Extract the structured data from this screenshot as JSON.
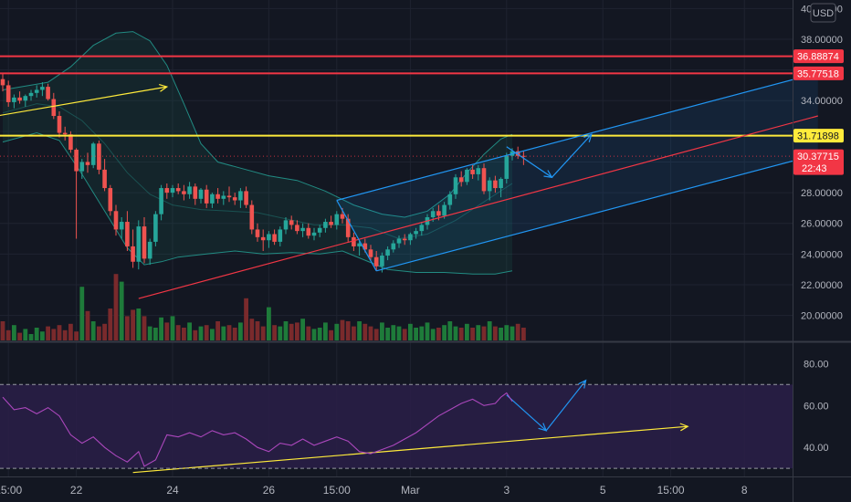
{
  "chart_data": {
    "type": "candlestick",
    "currency": "USD",
    "price_axis": {
      "ylim": [
        19.5,
        40.2
      ],
      "ticks": [
        20,
        22,
        24,
        26,
        28,
        34,
        38,
        40
      ],
      "tick_labels": [
        "20.00000",
        "22.00000",
        "24.00000",
        "26.00000",
        "28.00000",
        "34.00000",
        "38.00000",
        "40.00000"
      ]
    },
    "rsi_axis": {
      "ylim": [
        27,
        88
      ],
      "ticks": [
        40,
        60,
        80
      ],
      "tick_labels": [
        "40.00",
        "60.00",
        "80.00"
      ],
      "upper_band": 70,
      "lower_band": 30
    },
    "x_axis": {
      "labels": [
        {
          "text": "15:00",
          "i": 1
        },
        {
          "text": "22",
          "i": 13
        },
        {
          "text": "24",
          "i": 30
        },
        {
          "text": "26",
          "i": 47
        },
        {
          "text": "15:00",
          "i": 59
        },
        {
          "text": "Mar",
          "i": 72
        },
        {
          "text": "3",
          "i": 89
        },
        {
          "text": "5",
          "i": 106
        },
        {
          "text": "15:00",
          "i": 118
        },
        {
          "text": "8",
          "i": 131
        }
      ]
    },
    "price_tags": [
      {
        "label": "36.88874",
        "value": 36.88874,
        "color": "#f23645"
      },
      {
        "label": "35.77518",
        "value": 35.77518,
        "color": "#f23645"
      },
      {
        "label": "31.71898",
        "value": 31.71898,
        "color": "#ffeb3b"
      },
      {
        "label": "30.37715",
        "value": 30.37715,
        "color": "#f23645",
        "countdown": "22:43"
      }
    ],
    "horizontal_levels": [
      {
        "value": 36.88874,
        "color": "#f23645"
      },
      {
        "value": 35.77518,
        "color": "#f23645"
      },
      {
        "value": 31.71898,
        "color": "#ffeb3b"
      }
    ],
    "candles": [
      [
        35.4,
        35.8,
        34.6,
        35.0
      ],
      [
        35.0,
        35.3,
        33.6,
        33.9
      ],
      [
        33.9,
        34.4,
        33.5,
        34.2
      ],
      [
        34.2,
        34.6,
        33.8,
        34.0
      ],
      [
        34.0,
        34.4,
        33.6,
        34.3
      ],
      [
        34.3,
        34.7,
        34.0,
        34.5
      ],
      [
        34.5,
        35.0,
        34.2,
        34.7
      ],
      [
        34.7,
        35.2,
        34.3,
        34.9
      ],
      [
        34.9,
        35.1,
        34.0,
        34.1
      ],
      [
        34.1,
        34.5,
        32.8,
        33.0
      ],
      [
        33.0,
        33.3,
        31.6,
        31.9
      ],
      [
        31.9,
        32.3,
        31.4,
        31.8
      ],
      [
        31.8,
        32.0,
        30.6,
        30.8
      ],
      [
        30.8,
        30.9,
        25.0,
        29.4
      ],
      [
        29.4,
        30.2,
        28.9,
        30.0
      ],
      [
        30.0,
        30.6,
        29.3,
        29.8
      ],
      [
        29.8,
        31.3,
        29.6,
        31.2
      ],
      [
        31.2,
        31.4,
        29.2,
        29.5
      ],
      [
        29.5,
        30.2,
        28.1,
        28.3
      ],
      [
        28.3,
        28.5,
        26.5,
        26.8
      ],
      [
        26.8,
        27.2,
        25.2,
        25.6
      ],
      [
        25.6,
        26.4,
        25.0,
        26.1
      ],
      [
        26.1,
        26.8,
        24.2,
        24.5
      ],
      [
        24.5,
        25.6,
        23.1,
        23.5
      ],
      [
        23.5,
        26.2,
        23.0,
        25.8
      ],
      [
        25.8,
        26.4,
        23.4,
        23.7
      ],
      [
        23.7,
        25.0,
        23.3,
        24.8
      ],
      [
        24.8,
        26.8,
        24.5,
        26.6
      ],
      [
        26.6,
        28.5,
        26.2,
        28.3
      ],
      [
        28.3,
        28.6,
        27.6,
        28.0
      ],
      [
        28.0,
        28.5,
        27.7,
        28.3
      ],
      [
        28.3,
        28.6,
        27.9,
        28.1
      ],
      [
        28.1,
        28.5,
        27.5,
        27.9
      ],
      [
        27.9,
        28.7,
        27.6,
        28.4
      ],
      [
        28.4,
        28.6,
        27.2,
        27.6
      ],
      [
        27.6,
        28.3,
        27.3,
        28.2
      ],
      [
        28.2,
        28.5,
        27.0,
        27.3
      ],
      [
        27.3,
        28.0,
        27.0,
        27.9
      ],
      [
        27.9,
        28.3,
        27.3,
        27.6
      ],
      [
        27.6,
        28.1,
        27.2,
        27.8
      ],
      [
        27.8,
        28.4,
        27.4,
        27.7
      ],
      [
        27.7,
        28.0,
        27.2,
        27.5
      ],
      [
        27.5,
        28.3,
        27.0,
        28.1
      ],
      [
        28.1,
        28.4,
        27.0,
        27.2
      ],
      [
        27.2,
        27.5,
        25.3,
        25.6
      ],
      [
        25.6,
        26.0,
        24.8,
        25.1
      ],
      [
        25.1,
        25.6,
        24.2,
        24.9
      ],
      [
        24.9,
        25.5,
        24.4,
        25.3
      ],
      [
        25.3,
        25.6,
        24.6,
        24.8
      ],
      [
        24.8,
        25.8,
        24.5,
        25.6
      ],
      [
        25.6,
        26.4,
        25.3,
        26.2
      ],
      [
        26.2,
        26.5,
        25.6,
        25.9
      ],
      [
        25.9,
        26.2,
        25.3,
        25.5
      ],
      [
        25.5,
        26.0,
        25.1,
        25.7
      ],
      [
        25.7,
        26.0,
        25.0,
        25.2
      ],
      [
        25.2,
        25.7,
        24.9,
        25.4
      ],
      [
        25.4,
        25.9,
        25.1,
        25.7
      ],
      [
        25.7,
        26.3,
        25.4,
        26.1
      ],
      [
        26.1,
        26.5,
        25.7,
        25.9
      ],
      [
        25.9,
        26.8,
        25.6,
        26.6
      ],
      [
        26.6,
        27.0,
        26.0,
        26.3
      ],
      [
        26.3,
        26.6,
        24.8,
        25.1
      ],
      [
        25.1,
        25.4,
        24.2,
        24.5
      ],
      [
        24.5,
        24.9,
        23.9,
        24.7
      ],
      [
        24.7,
        25.0,
        24.1,
        24.3
      ],
      [
        24.3,
        24.6,
        23.6,
        23.8
      ],
      [
        23.8,
        24.2,
        22.9,
        23.2
      ],
      [
        23.2,
        24.1,
        22.8,
        23.9
      ],
      [
        23.9,
        24.5,
        23.6,
        24.3
      ],
      [
        24.3,
        24.9,
        24.1,
        24.7
      ],
      [
        24.7,
        25.2,
        24.4,
        25.0
      ],
      [
        25.0,
        25.3,
        24.6,
        24.9
      ],
      [
        24.9,
        25.4,
        24.6,
        25.3
      ],
      [
        25.3,
        25.7,
        25.0,
        25.5
      ],
      [
        25.5,
        26.1,
        25.2,
        25.9
      ],
      [
        25.9,
        26.6,
        25.6,
        26.4
      ],
      [
        26.4,
        27.0,
        26.1,
        26.8
      ],
      [
        26.8,
        27.2,
        26.2,
        26.5
      ],
      [
        26.5,
        27.4,
        26.3,
        27.2
      ],
      [
        27.2,
        28.1,
        26.9,
        27.9
      ],
      [
        27.9,
        29.2,
        27.6,
        29.0
      ],
      [
        29.0,
        29.4,
        28.4,
        28.7
      ],
      [
        28.7,
        29.6,
        28.5,
        29.5
      ],
      [
        29.5,
        29.8,
        28.9,
        29.2
      ],
      [
        29.2,
        29.8,
        28.8,
        29.6
      ],
      [
        29.6,
        29.9,
        27.9,
        28.1
      ],
      [
        28.1,
        29.0,
        27.5,
        28.8
      ],
      [
        28.8,
        29.1,
        28.0,
        28.3
      ],
      [
        28.3,
        29.0,
        27.7,
        28.9
      ],
      [
        28.9,
        30.6,
        28.6,
        30.4
      ],
      [
        30.4,
        30.9,
        30.1,
        30.7
      ],
      [
        30.7,
        31.0,
        30.2,
        30.4
      ],
      [
        30.4,
        30.7,
        29.8,
        30.37715
      ]
    ],
    "bollinger": {
      "upper": [
        [
          0,
          34.7
        ],
        [
          8,
          35.2
        ],
        [
          12,
          36.2
        ],
        [
          16,
          37.6
        ],
        [
          20,
          38.4
        ],
        [
          23,
          38.5
        ],
        [
          26,
          37.9
        ],
        [
          29,
          36.3
        ],
        [
          32,
          33.8
        ],
        [
          35,
          31.2
        ],
        [
          38,
          30.0
        ],
        [
          42,
          29.6
        ],
        [
          47,
          29.1
        ],
        [
          52,
          28.8
        ],
        [
          57,
          28.1
        ],
        [
          62,
          27.2
        ],
        [
          67,
          26.6
        ],
        [
          71,
          26.4
        ],
        [
          75,
          26.8
        ],
        [
          79,
          27.9
        ],
        [
          82,
          29.3
        ],
        [
          85,
          30.5
        ],
        [
          88,
          31.5
        ],
        [
          90,
          31.8
        ]
      ],
      "middle": [
        [
          0,
          33.2
        ],
        [
          6,
          33.8
        ],
        [
          10,
          33.6
        ],
        [
          14,
          32.7
        ],
        [
          18,
          31.2
        ],
        [
          22,
          29.3
        ],
        [
          26,
          27.9
        ],
        [
          30,
          27.2
        ],
        [
          35,
          26.9
        ],
        [
          40,
          26.8
        ],
        [
          45,
          26.7
        ],
        [
          50,
          26.3
        ],
        [
          55,
          25.9
        ],
        [
          60,
          25.9
        ],
        [
          65,
          25.7
        ],
        [
          70,
          25.0
        ],
        [
          75,
          25.3
        ],
        [
          80,
          26.2
        ],
        [
          85,
          27.4
        ],
        [
          90,
          28.6
        ]
      ],
      "lower": [
        [
          0,
          31.3
        ],
        [
          6,
          31.9
        ],
        [
          10,
          31.4
        ],
        [
          14,
          29.2
        ],
        [
          18,
          26.8
        ],
        [
          22,
          24.4
        ],
        [
          25,
          23.3
        ],
        [
          28,
          23.5
        ],
        [
          31,
          23.8
        ],
        [
          36,
          24.0
        ],
        [
          41,
          24.2
        ],
        [
          46,
          24.0
        ],
        [
          51,
          24.1
        ],
        [
          56,
          24.0
        ],
        [
          60,
          24.2
        ],
        [
          64,
          23.6
        ],
        [
          68,
          23.0
        ],
        [
          73,
          22.8
        ],
        [
          78,
          22.8
        ],
        [
          83,
          22.7
        ],
        [
          87,
          22.7
        ],
        [
          90,
          22.9
        ]
      ]
    },
    "volume": [
      1.5,
      0.8,
      1.2,
      0.6,
      0.9,
      0.5,
      1.0,
      0.7,
      1.1,
      0.9,
      1.2,
      0.8,
      1.3,
      0.7,
      4.2,
      2.3,
      1.5,
      1.1,
      1.3,
      2.5,
      5.2,
      4.6,
      1.9,
      2.4,
      2.5,
      1.9,
      1.1,
      1.0,
      1.8,
      1.4,
      1.9,
      1.2,
      1.0,
      1.4,
      0.8,
      1.1,
      1.2,
      0.9,
      1.5,
      1.1,
      1.2,
      1.0,
      1.4,
      3.3,
      1.7,
      1.5,
      1.1,
      2.6,
      1.2,
      1.1,
      1.5,
      1.3,
      1.4,
      1.7,
      1.1,
      0.9,
      1.0,
      1.4,
      0.8,
      1.3,
      1.6,
      1.5,
      1.1,
      1.5,
      1.3,
      1.1,
      0.9,
      1.4,
      1.0,
      1.2,
      1.1,
      0.9,
      1.3,
      1.0,
      1.1,
      1.4,
      0.9,
      1.0,
      1.2,
      1.5,
      1.1,
      1.0,
      1.3,
      1.0,
      1.2,
      1.1,
      1.5,
      1.1,
      1.0,
      1.2,
      1.1,
      1.3,
      1.0
    ],
    "volume_colors_up": "#1e7b3a",
    "volume_colors_down": "#7a2a2c",
    "rsi": [
      [
        0,
        64
      ],
      [
        2,
        58
      ],
      [
        4,
        59
      ],
      [
        6,
        56
      ],
      [
        8,
        59
      ],
      [
        10,
        55
      ],
      [
        12,
        46
      ],
      [
        14,
        42
      ],
      [
        16,
        45
      ],
      [
        18,
        40
      ],
      [
        20,
        36
      ],
      [
        22,
        33
      ],
      [
        24,
        38
      ],
      [
        25,
        31
      ],
      [
        27,
        34
      ],
      [
        29,
        46
      ],
      [
        31,
        45
      ],
      [
        33,
        47
      ],
      [
        35,
        45
      ],
      [
        37,
        48
      ],
      [
        39,
        46
      ],
      [
        41,
        47
      ],
      [
        43,
        44
      ],
      [
        45,
        40
      ],
      [
        47,
        38
      ],
      [
        49,
        42
      ],
      [
        51,
        41
      ],
      [
        53,
        44
      ],
      [
        55,
        41
      ],
      [
        57,
        43
      ],
      [
        59,
        45
      ],
      [
        61,
        43
      ],
      [
        63,
        38
      ],
      [
        65,
        37
      ],
      [
        67,
        39
      ],
      [
        69,
        41
      ],
      [
        71,
        44
      ],
      [
        73,
        47
      ],
      [
        75,
        51
      ],
      [
        77,
        55
      ],
      [
        79,
        58
      ],
      [
        81,
        61
      ],
      [
        83,
        63
      ],
      [
        85,
        60
      ],
      [
        87,
        61
      ],
      [
        88,
        64
      ],
      [
        89,
        66
      ],
      [
        90,
        62
      ]
    ],
    "annotations": [
      {
        "kind": "trendline",
        "color": "#ffeb3b",
        "pane": "price",
        "from": [
          -1,
          33.0
        ],
        "to": [
          29,
          34.9
        ],
        "arrow": true
      },
      {
        "kind": "trendline",
        "color": "#f23645",
        "pane": "price",
        "from": [
          24,
          21.1
        ],
        "to": [
          144,
          33.0
        ]
      },
      {
        "kind": "channel_top",
        "color": "#2196f3",
        "pane": "price",
        "from": [
          59,
          27.5
        ],
        "to": [
          144,
          35.8
        ]
      },
      {
        "kind": "channel_bottom",
        "color": "#2196f3",
        "pane": "price",
        "from": [
          66,
          22.9
        ],
        "to": [
          144,
          30.5
        ]
      },
      {
        "kind": "path",
        "color": "#2196f3",
        "pane": "price",
        "points": [
          [
            59,
            27.5
          ],
          [
            66,
            22.9
          ]
        ]
      },
      {
        "kind": "projection",
        "color": "#2196f3",
        "pane": "price",
        "points": [
          [
            89,
            31.0
          ],
          [
            97,
            29.0
          ],
          [
            104,
            31.8
          ]
        ],
        "arrow": true
      },
      {
        "kind": "trendline",
        "color": "#ffeb3b",
        "pane": "rsi",
        "from": [
          23,
          28
        ],
        "to": [
          121,
          50
        ],
        "arrow": true
      },
      {
        "kind": "projection",
        "color": "#2196f3",
        "pane": "rsi",
        "points": [
          [
            89,
            65
          ],
          [
            96,
            48
          ],
          [
            103,
            72
          ]
        ],
        "arrow": true
      }
    ]
  }
}
